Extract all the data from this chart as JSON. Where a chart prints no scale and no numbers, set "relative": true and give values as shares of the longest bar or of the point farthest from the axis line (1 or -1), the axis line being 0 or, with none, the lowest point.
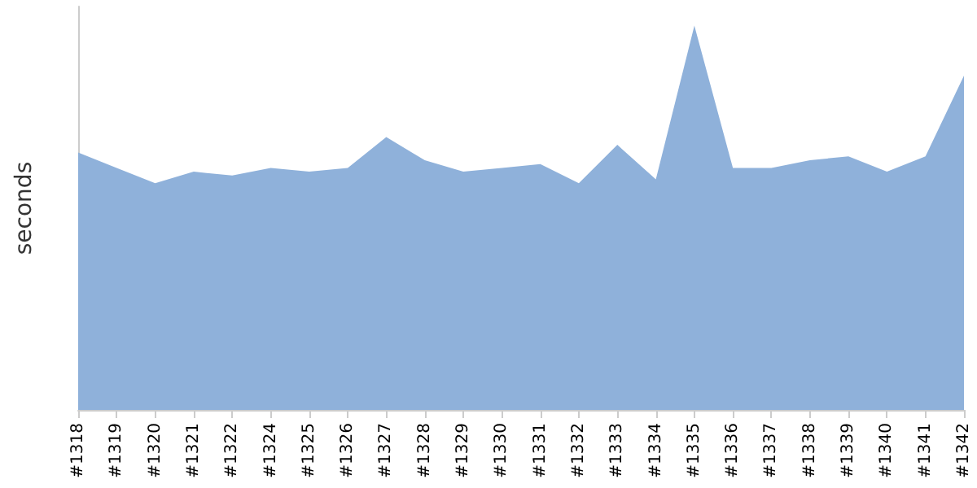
{
  "chart_data": {
    "type": "area",
    "ylabel": "seconds",
    "relative": true,
    "categories": [
      "#1318",
      "#1319",
      "#1320",
      "#1321",
      "#1322",
      "#1324",
      "#1325",
      "#1326",
      "#1327",
      "#1328",
      "#1329",
      "#1330",
      "#1331",
      "#1332",
      "#1333",
      "#1334",
      "#1335",
      "#1336",
      "#1337",
      "#1338",
      "#1339",
      "#1340",
      "#1341",
      "#1342"
    ],
    "series": [
      {
        "color": "#8fb1da",
        "values": [
          0.67,
          0.63,
          0.59,
          0.62,
          0.61,
          0.63,
          0.62,
          0.63,
          0.71,
          0.65,
          0.62,
          0.63,
          0.64,
          0.59,
          0.69,
          0.6,
          1,
          0.63,
          0.63,
          0.65,
          0.66,
          0.62,
          0.66,
          0.87
        ]
      }
    ]
  }
}
